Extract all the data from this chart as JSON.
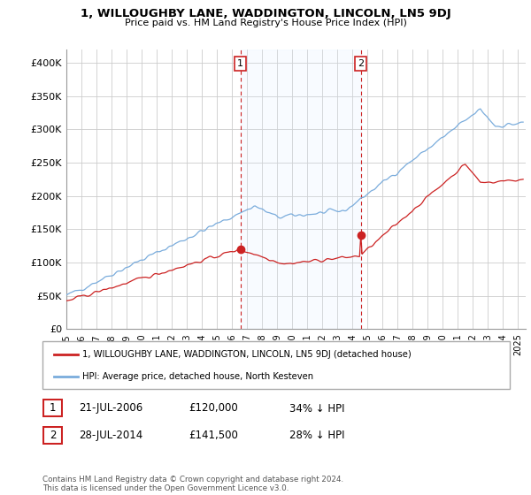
{
  "title": "1, WILLOUGHBY LANE, WADDINGTON, LINCOLN, LN5 9DJ",
  "subtitle": "Price paid vs. HM Land Registry's House Price Index (HPI)",
  "ylim": [
    0,
    420000
  ],
  "yticks": [
    0,
    50000,
    100000,
    150000,
    200000,
    250000,
    300000,
    350000,
    400000
  ],
  "ytick_labels": [
    "£0",
    "£50K",
    "£100K",
    "£150K",
    "£200K",
    "£250K",
    "£300K",
    "£350K",
    "£400K"
  ],
  "bg_color": "#ffffff",
  "grid_color": "#cccccc",
  "hpi_color": "#7aacdc",
  "price_color": "#cc2222",
  "shade_color": "#ddeeff",
  "legend_label_price": "1, WILLOUGHBY LANE, WADDINGTON, LINCOLN, LN5 9DJ (detached house)",
  "legend_label_hpi": "HPI: Average price, detached house, North Kesteven",
  "annotation1_date": "21-JUL-2006",
  "annotation1_price": "£120,000",
  "annotation1_pct": "34% ↓ HPI",
  "annotation2_date": "28-JUL-2014",
  "annotation2_price": "£141,500",
  "annotation2_pct": "28% ↓ HPI",
  "footer": "Contains HM Land Registry data © Crown copyright and database right 2024.\nThis data is licensed under the Open Government Licence v3.0.",
  "vline1_x": 2006.55,
  "vline2_x": 2014.55,
  "sale1_x": 2006.55,
  "sale1_y": 120000,
  "sale2_x": 2014.55,
  "sale2_y": 141500,
  "xmin": 1995.0,
  "xmax": 2025.5
}
